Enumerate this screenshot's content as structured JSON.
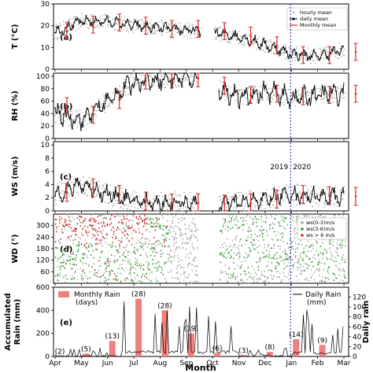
{
  "figure": {
    "xlabel": "Month",
    "months": [
      "Apr",
      "May",
      "Jun",
      "Jul",
      "Aug",
      "Sep",
      "Oct",
      "Nov",
      "Dec",
      "Jan",
      "Feb",
      "Mar"
    ],
    "year_marks": [
      "2019",
      "2020"
    ],
    "colors": {
      "hourly": "#a8a8a8",
      "daily": "#000000",
      "monthly": "#d62728",
      "divider": "#1f1fb4",
      "wd_green": "#2ca02c",
      "rain_bar": "#f08080"
    }
  },
  "panels": {
    "T": {
      "label": "(a)",
      "ylabel": "T (°C)",
      "ylim": [
        0,
        30
      ],
      "yticks": [
        "0",
        "10",
        "20",
        "30"
      ],
      "legend": [
        "hourly mean",
        "daily mean",
        "Monthly mean"
      ]
    },
    "RH": {
      "label": "(b)",
      "ylabel": "RH (%)",
      "ylim": [
        0,
        105
      ],
      "yticks": [
        "0",
        "20",
        "40",
        "60",
        "80",
        "100"
      ]
    },
    "WS": {
      "label": "(c)",
      "ylabel": "WS (m/s)",
      "ylim": [
        0,
        10.5
      ],
      "yticks": [
        "0",
        "2",
        "4",
        "6",
        "8",
        "10"
      ]
    },
    "WD": {
      "label": "(d)",
      "ylabel": "WD (°)",
      "ylim": [
        0,
        360
      ],
      "yticks": [
        "60",
        "120",
        "180",
        "240",
        "300"
      ],
      "legend": [
        "ws(0-3)m/s",
        "ws(3-6)m/s",
        "ws > 6 m/s"
      ]
    },
    "Rain": {
      "label": "(e)",
      "ylabel_line1": "Accumulated",
      "ylabel_line2": "Rain (mm)",
      "y2label": "Daily rain",
      "ylim": [
        0,
        600
      ],
      "y2lim": [
        0,
        140
      ],
      "yticks": [
        "0",
        "200",
        "400",
        "600"
      ],
      "y2ticks": [
        "0",
        "20",
        "40",
        "60",
        "80",
        "100",
        "120"
      ],
      "legend_bar_1": "Monthly Rain",
      "legend_bar_2": "(days)",
      "legend_line_1": "Daily Rain",
      "legend_line_2": "(mm)"
    }
  },
  "chart_data": [
    {
      "type": "line",
      "title": "",
      "ylabel": "T (°C)",
      "ylim": [
        0,
        30
      ],
      "x": [
        "Apr",
        "May",
        "Jun",
        "Jul",
        "Aug",
        "Sep",
        "Oct",
        "Nov",
        "Dec",
        "Jan",
        "Feb",
        "Mar"
      ],
      "series": [
        {
          "name": "Monthly mean",
          "values": [
            17.5,
            20.5,
            21.5,
            20,
            18.5,
            18.5,
            17.5,
            15.5,
            11,
            6.5,
            6.5,
            8
          ]
        }
      ]
    },
    {
      "type": "line",
      "title": "",
      "ylabel": "RH (%)",
      "ylim": [
        0,
        105
      ],
      "x": [
        "Apr",
        "May",
        "Jun",
        "Jul",
        "Aug",
        "Sep",
        "Oct",
        "Nov",
        "Dec",
        "Jan",
        "Feb",
        "Mar"
      ],
      "series": [
        {
          "name": "Monthly mean",
          "values": [
            52,
            38,
            62,
            93,
            95,
            97,
            85,
            70,
            72,
            68,
            70,
            72
          ]
        }
      ]
    },
    {
      "type": "line",
      "title": "",
      "ylabel": "WS (m/s)",
      "ylim": [
        0,
        10.5
      ],
      "x": [
        "Apr",
        "May",
        "Jun",
        "Jul",
        "Aug",
        "Sep",
        "Oct",
        "Nov",
        "Dec",
        "Jan",
        "Feb",
        "Mar"
      ],
      "series": [
        {
          "name": "Monthly mean",
          "values": [
            2.8,
            3.5,
            2.5,
            1.5,
            1.2,
            1.2,
            1,
            1.2,
            1.8,
            2.5,
            2.3,
            2.2
          ]
        }
      ]
    },
    {
      "type": "bar",
      "title": "",
      "ylabel": "Accumulated Rain (mm)",
      "ylim": [
        0,
        600
      ],
      "categories": [
        "Apr",
        "May",
        "Jun",
        "Jul",
        "Aug",
        "Sep",
        "Oct",
        "Nov",
        "Dec",
        "Jan",
        "Feb",
        "Mar"
      ],
      "series": [
        {
          "name": "Monthly Rain (days)",
          "values": [
            5,
            25,
            135,
            500,
            400,
            200,
            30,
            10,
            40,
            150,
            100,
            0
          ]
        }
      ],
      "day_labels": [
        "(2)",
        "(5)",
        "(13)",
        "(28)",
        "(28)",
        "(19)",
        "(6)",
        "(3)",
        "(8)",
        "(14)",
        "(9)",
        ""
      ]
    }
  ]
}
